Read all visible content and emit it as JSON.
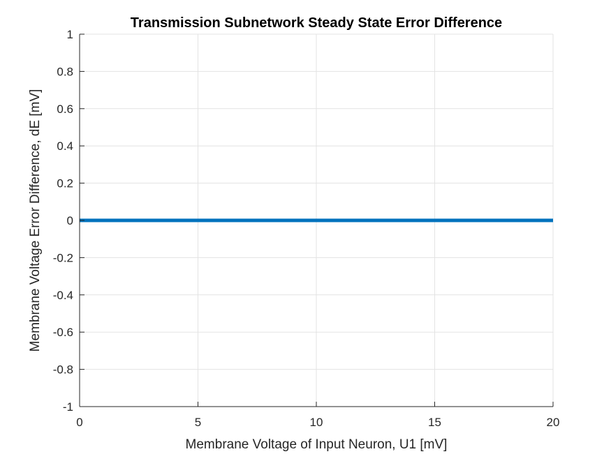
{
  "chart_data": {
    "type": "line",
    "title": "Transmission Subnetwork Steady State Error Difference",
    "xlabel": "Membrane Voltage of Input Neuron, U1 [mV]",
    "ylabel": "Membrane Voltage Error Difference, dE [mV]",
    "xlim": [
      0,
      20
    ],
    "ylim": [
      -1,
      1
    ],
    "x_ticks": [
      0,
      5,
      10,
      15,
      20
    ],
    "x_tick_labels": [
      "0",
      "5",
      "10",
      "15",
      "20"
    ],
    "y_ticks": [
      -1,
      -0.8,
      -0.6,
      -0.4,
      -0.2,
      0,
      0.2,
      0.4,
      0.6,
      0.8,
      1
    ],
    "y_tick_labels": [
      "-1",
      "-0.8",
      "-0.6",
      "-0.4",
      "-0.2",
      "0",
      "0.2",
      "0.4",
      "0.6",
      "0.8",
      "1"
    ],
    "grid": true,
    "series": [
      {
        "color": "#0072BD",
        "x": [
          0,
          5,
          10,
          15,
          20
        ],
        "y": [
          0,
          0,
          0,
          0,
          0
        ]
      }
    ]
  }
}
